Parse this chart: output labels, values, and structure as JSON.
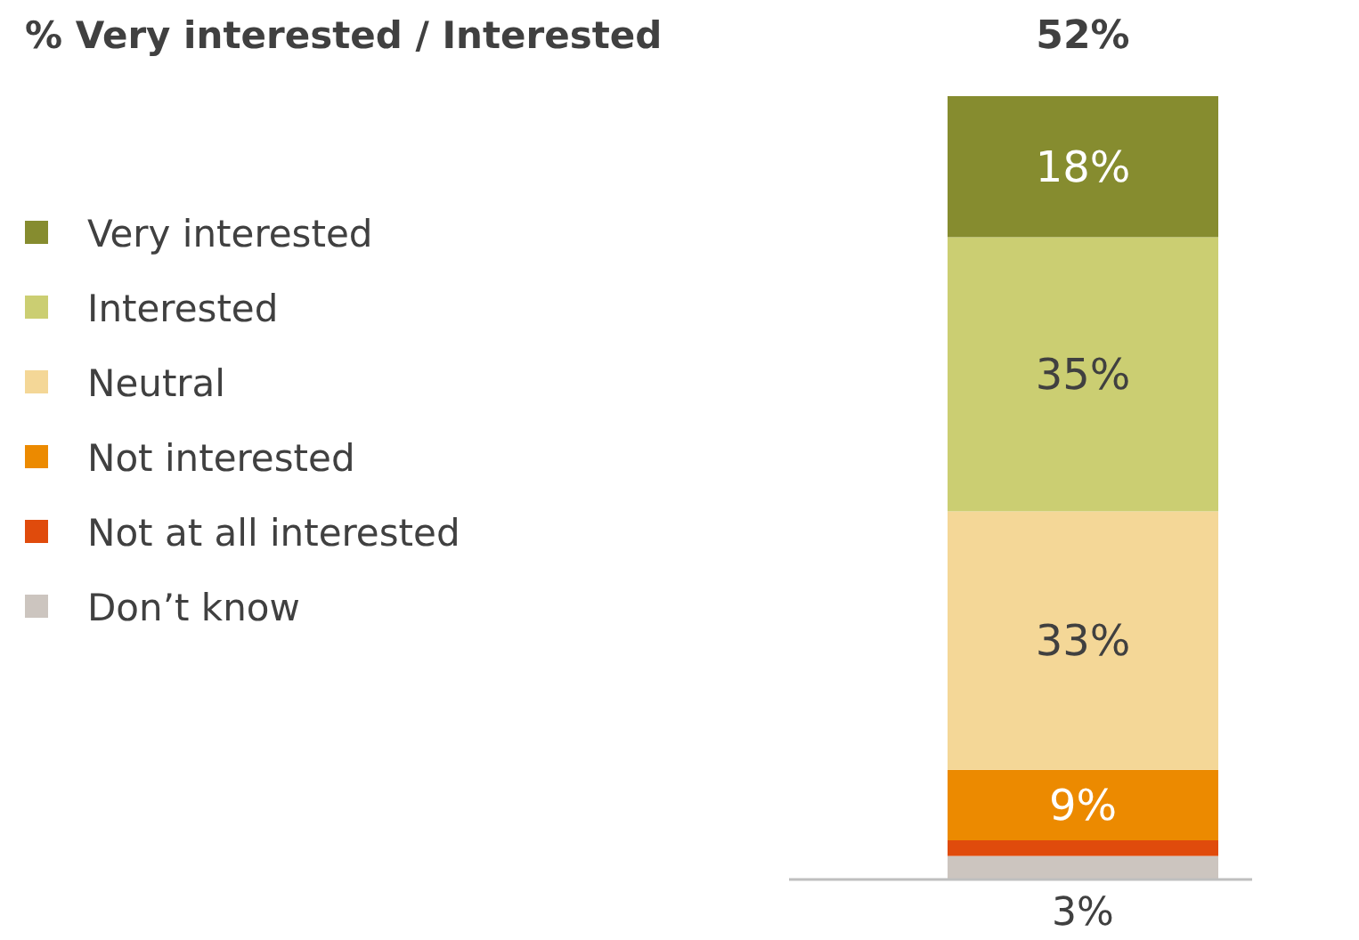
{
  "chart_data": {
    "type": "bar",
    "title": "% Very interested / Interested",
    "annotations": [
      "52%"
    ],
    "categories": [
      null
    ],
    "stacked": true,
    "legend": "left",
    "series": [
      {
        "name": "Don’t know",
        "color": "#ccc5bf",
        "values": [
          3
        ],
        "value_labels": [
          "3%"
        ]
      },
      {
        "name": "Not at all interested",
        "color": "#e04b0c",
        "values": [
          2
        ],
        "value_labels": [
          null
        ]
      },
      {
        "name": "Not interested",
        "color": "#ec8a00",
        "values": [
          9
        ],
        "value_labels": [
          "9%"
        ]
      },
      {
        "name": "Neutral",
        "color": "#f4d797",
        "values": [
          33
        ],
        "value_labels": [
          "33%"
        ]
      },
      {
        "name": "Interested",
        "color": "#cbce72",
        "values": [
          35
        ],
        "value_labels": [
          "35%"
        ]
      },
      {
        "name": "Very interested",
        "color": "#868c2f",
        "values": [
          18
        ],
        "value_labels": [
          "18%"
        ]
      }
    ]
  }
}
